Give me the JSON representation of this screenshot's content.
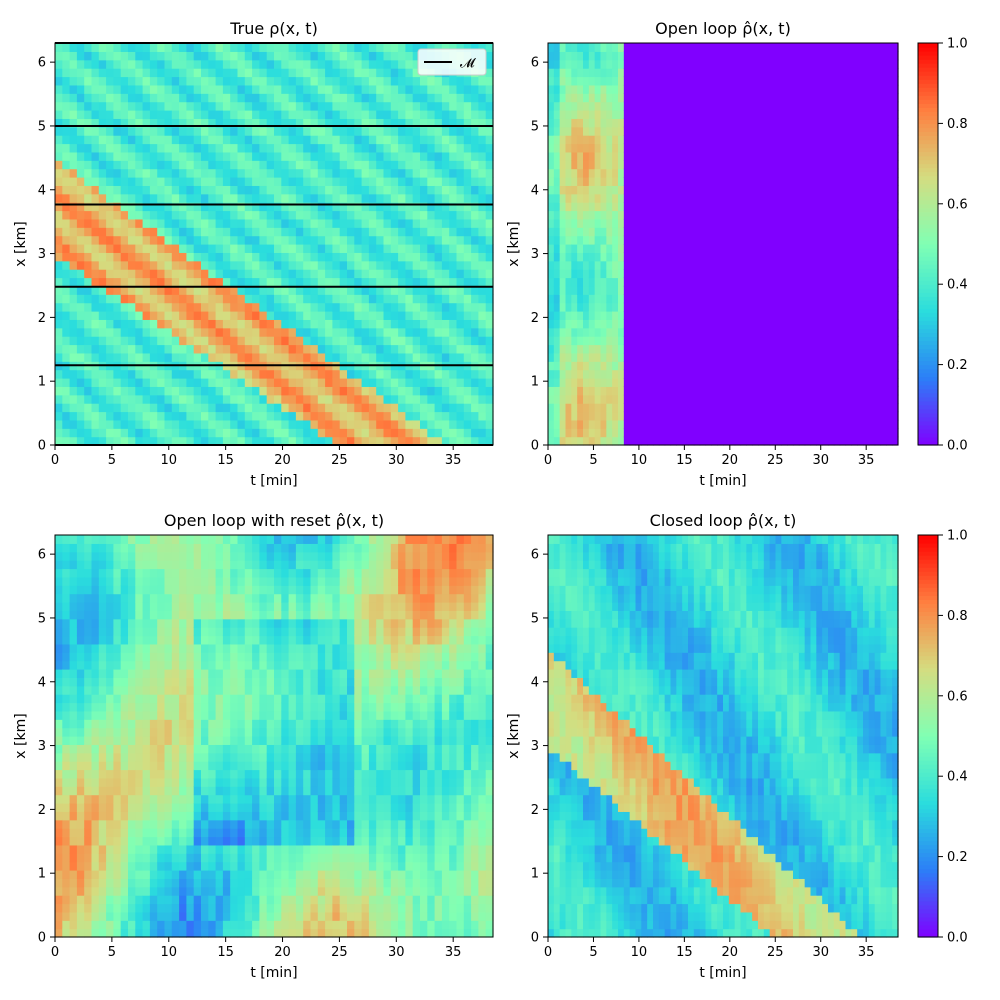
{
  "colormap": {
    "name": "rainbow",
    "stops": [
      "#8000ff",
      "#2c7ef7",
      "#2adddd",
      "#80ffb4",
      "#d4dd80",
      "#ff7f40",
      "#ff0000"
    ]
  },
  "chart_data": [
    {
      "type": "heatmap",
      "title": "True ρ(x, t)",
      "xlabel": "t [min]",
      "ylabel": "x [km]",
      "xlim": [
        0,
        38.5
      ],
      "ylim": [
        0,
        6.3
      ],
      "xticks": [
        0,
        5,
        10,
        15,
        20,
        25,
        30,
        35
      ],
      "yticks": [
        0,
        1,
        2,
        3,
        4,
        5,
        6
      ],
      "value_range": [
        0,
        1
      ],
      "pattern": "stripes",
      "legend": {
        "label": "𝓜",
        "placement": "top-right",
        "color": "#000000"
      },
      "measurement_lines_x_km": [
        0.0,
        1.25,
        2.48,
        3.77,
        5.0,
        6.3
      ],
      "congested_band": {
        "value": 0.75,
        "upstream_edge_t_at_x0": [
          -28,
          25
        ],
        "downstream_edge_t_at_x0": [
          -14,
          34.5
        ],
        "x_span_km": 6.3
      },
      "free_flow_value": 0.4,
      "colorbar": false
    },
    {
      "type": "heatmap",
      "title": "Open loop ρ̂(x, t)",
      "xlabel": "t [min]",
      "ylabel": "x [km]",
      "xlim": [
        0,
        38.5
      ],
      "ylim": [
        0,
        6.3
      ],
      "xticks": [
        0,
        5,
        10,
        15,
        20,
        25,
        30,
        35
      ],
      "yticks": [
        0,
        1,
        2,
        3,
        4,
        5,
        6
      ],
      "value_range": [
        0,
        1
      ],
      "pattern": "blocks",
      "blocks": [
        {
          "t0": 8.5,
          "t1": 38.5,
          "x0": 0,
          "x1": 6.3,
          "value": 0.0
        }
      ],
      "colorbar": true,
      "colorbar_ticks": [
        0.0,
        0.2,
        0.4,
        0.6,
        0.8,
        1.0
      ]
    },
    {
      "type": "heatmap",
      "title": "Open loop with reset ρ̂(x, t)",
      "xlabel": "t [min]",
      "ylabel": "x [km]",
      "xlim": [
        0,
        38.5
      ],
      "ylim": [
        0,
        6.3
      ],
      "xticks": [
        0,
        5,
        10,
        15,
        20,
        25,
        30,
        35
      ],
      "yticks": [
        0,
        1,
        2,
        3,
        4,
        5,
        6
      ],
      "value_range": [
        0,
        1
      ],
      "pattern": "vertical",
      "colorbar": false
    },
    {
      "type": "heatmap",
      "title": "Closed loop ρ̂(x, t)",
      "xlabel": "t [min]",
      "ylabel": "x [km]",
      "xlim": [
        0,
        38.5
      ],
      "ylim": [
        0,
        6.3
      ],
      "xticks": [
        0,
        5,
        10,
        15,
        20,
        25,
        30,
        35
      ],
      "yticks": [
        0,
        1,
        2,
        3,
        4,
        5,
        6
      ],
      "value_range": [
        0,
        1
      ],
      "pattern": "diagonal-soft",
      "congested_band": {
        "value": 0.7,
        "upstream_edge_t_at_x0": [
          -28,
          25
        ],
        "downstream_edge_t_at_x0": [
          -14,
          34.5
        ],
        "x_span_km": 6.3
      },
      "free_flow_value": 0.33,
      "colorbar": true,
      "colorbar_ticks": [
        0.0,
        0.2,
        0.4,
        0.6,
        0.8,
        1.0
      ]
    }
  ]
}
